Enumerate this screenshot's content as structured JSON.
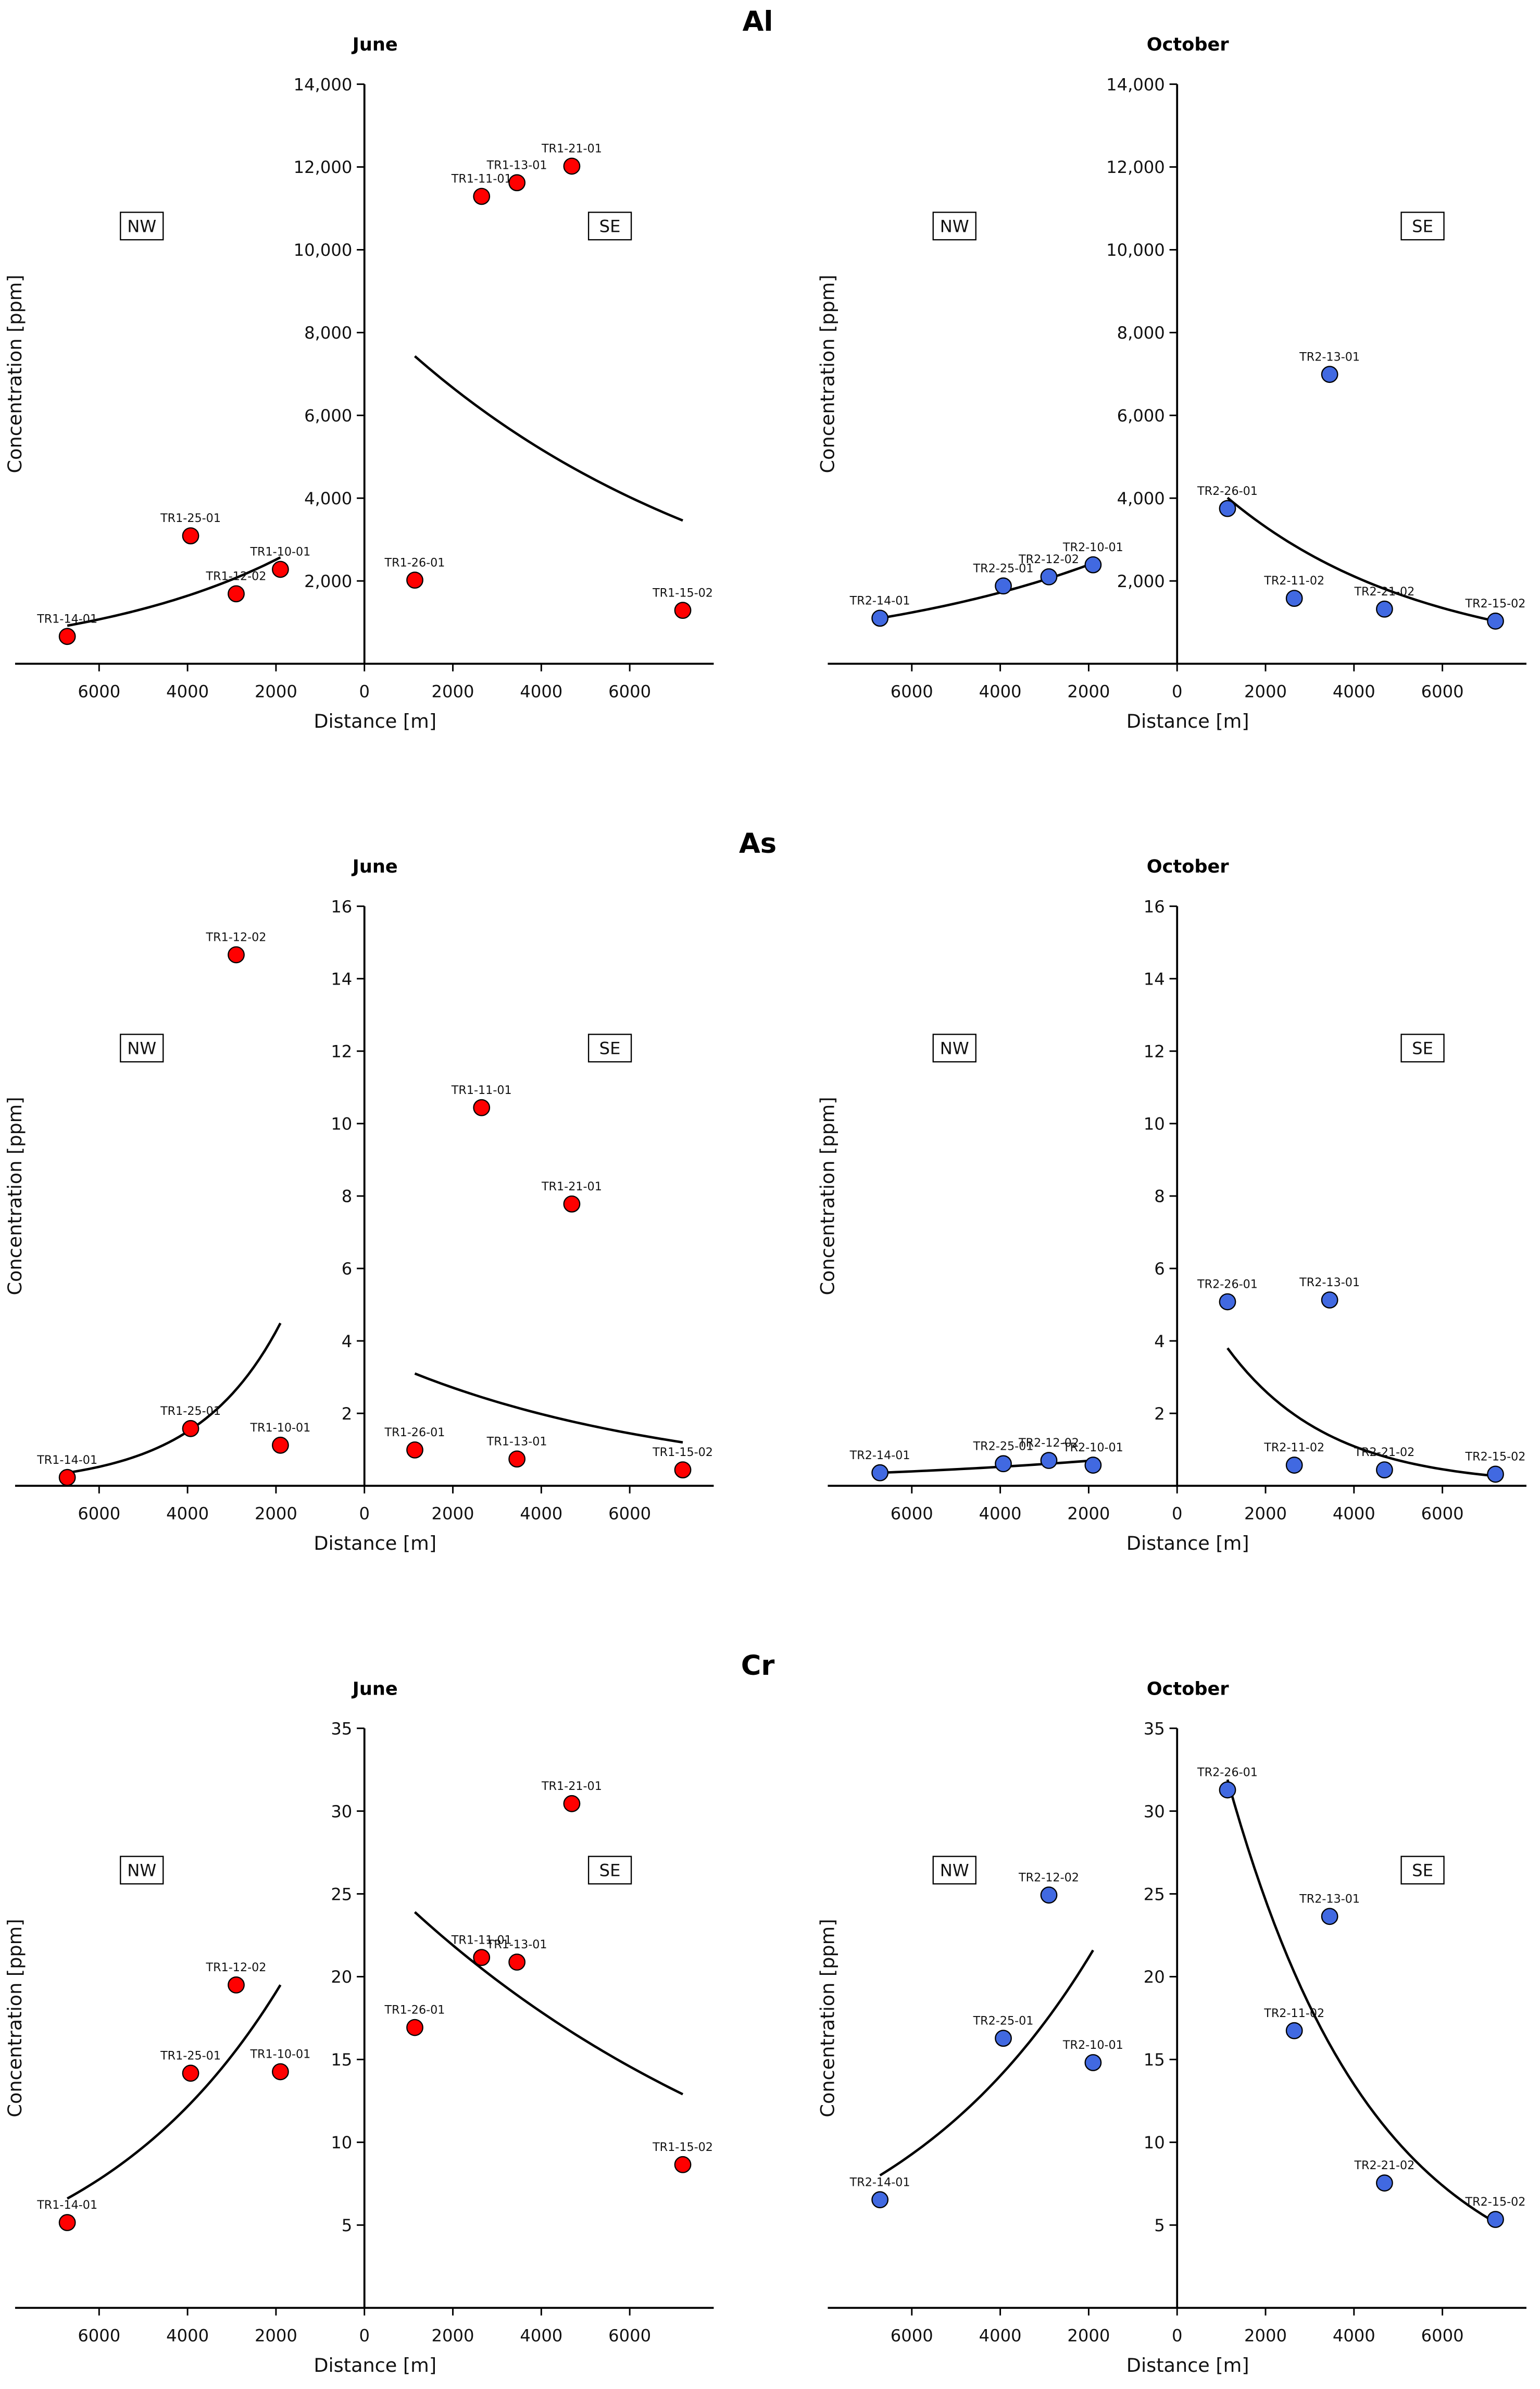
{
  "chart_data": [
    {
      "type": "scatter",
      "element": "Al",
      "title": "June",
      "xlabel": "Distance [m]",
      "ylabel": "Concentration [ppm]",
      "xlim": [
        -7900,
        7900
      ],
      "xticks": [
        -6000,
        -4000,
        -2000,
        0,
        2000,
        4000,
        6000
      ],
      "xticklabels": [
        "6000",
        "4000",
        "2000",
        "0",
        "2000",
        "4000",
        "6000"
      ],
      "ylim": [
        0,
        14000
      ],
      "yticks": [
        2000,
        4000,
        6000,
        8000,
        10000,
        12000,
        14000
      ],
      "yticklabels": [
        "2,000",
        "4,000",
        "6,000",
        "8,000",
        "10,000",
        "12,000",
        "14,000"
      ],
      "annotations": [
        "NW",
        "SE"
      ],
      "color": "#ff0000",
      "points": [
        {
          "label": "TR1-14-01",
          "x": -6720,
          "y": 660
        },
        {
          "label": "TR1-25-01",
          "x": -3930,
          "y": 3090
        },
        {
          "label": "TR1-12-02",
          "x": -2900,
          "y": 1690
        },
        {
          "label": "TR1-10-01",
          "x": -1900,
          "y": 2280
        },
        {
          "label": "TR1-26-01",
          "x": 1140,
          "y": 2020
        },
        {
          "label": "TR1-11-01",
          "x": 2650,
          "y": 11290
        },
        {
          "label": "TR1-13-01",
          "x": 3450,
          "y": 11620
        },
        {
          "label": "TR1-21-01",
          "x": 4690,
          "y": 12020
        },
        {
          "label": "TR1-15-02",
          "x": 7200,
          "y": 1290
        }
      ],
      "trends": [
        {
          "x": [
            -6720,
            -1900
          ],
          "y": [
            920,
            2570
          ]
        },
        {
          "x": [
            1140,
            7200
          ],
          "y": [
            7430,
            3460
          ]
        }
      ]
    },
    {
      "type": "scatter",
      "element": "Al",
      "title": "October",
      "xlabel": "Distance [m]",
      "ylabel": "Concentration [ppm]",
      "xlim": [
        -7900,
        7900
      ],
      "xticks": [
        -6000,
        -4000,
        -2000,
        0,
        2000,
        4000,
        6000
      ],
      "xticklabels": [
        "6000",
        "4000",
        "2000",
        "0",
        "2000",
        "4000",
        "6000"
      ],
      "ylim": [
        0,
        14000
      ],
      "yticks": [
        2000,
        4000,
        6000,
        8000,
        10000,
        12000,
        14000
      ],
      "yticklabels": [
        "2,000",
        "4,000",
        "6,000",
        "8,000",
        "10,000",
        "12,000",
        "14,000"
      ],
      "annotations": [
        "NW",
        "SE"
      ],
      "color": "#4169e1",
      "points": [
        {
          "label": "TR2-14-01",
          "x": -6720,
          "y": 1100
        },
        {
          "label": "TR2-25-01",
          "x": -3930,
          "y": 1880
        },
        {
          "label": "TR2-12-02",
          "x": -2900,
          "y": 2100
        },
        {
          "label": "TR2-10-01",
          "x": -1900,
          "y": 2390
        },
        {
          "label": "TR2-26-01",
          "x": 1140,
          "y": 3750
        },
        {
          "label": "TR2-11-02",
          "x": 2650,
          "y": 1580
        },
        {
          "label": "TR2-13-01",
          "x": 3450,
          "y": 6990
        },
        {
          "label": "TR2-21-02",
          "x": 4690,
          "y": 1320
        },
        {
          "label": "TR2-15-02",
          "x": 7200,
          "y": 1030
        }
      ],
      "trends": [
        {
          "x": [
            -6720,
            -1900
          ],
          "y": [
            1100,
            2430
          ]
        },
        {
          "x": [
            1140,
            7200
          ],
          "y": [
            4010,
            1030
          ]
        }
      ]
    },
    {
      "type": "scatter",
      "element": "As",
      "title": "June",
      "xlabel": "Distance [m]",
      "ylabel": "Concentration [ppm]",
      "xlim": [
        -7900,
        7900
      ],
      "xticks": [
        -6000,
        -4000,
        -2000,
        0,
        2000,
        4000,
        6000
      ],
      "xticklabels": [
        "6000",
        "4000",
        "2000",
        "0",
        "2000",
        "4000",
        "6000"
      ],
      "ylim": [
        0,
        16
      ],
      "yticks": [
        2,
        4,
        6,
        8,
        10,
        12,
        14,
        16
      ],
      "yticklabels": [
        "2",
        "4",
        "6",
        "8",
        "10",
        "12",
        "14",
        "16"
      ],
      "annotations": [
        "NW",
        "SE"
      ],
      "color": "#ff0000",
      "points": [
        {
          "label": "TR1-14-01",
          "x": -6720,
          "y": 0.23
        },
        {
          "label": "TR1-25-01",
          "x": -3930,
          "y": 1.58
        },
        {
          "label": "TR1-12-02",
          "x": -2900,
          "y": 14.66
        },
        {
          "label": "TR1-10-01",
          "x": -1900,
          "y": 1.12
        },
        {
          "label": "TR1-26-01",
          "x": 1140,
          "y": 0.99
        },
        {
          "label": "TR1-11-01",
          "x": 2650,
          "y": 10.44
        },
        {
          "label": "TR1-13-01",
          "x": 3450,
          "y": 0.74
        },
        {
          "label": "TR1-21-01",
          "x": 4690,
          "y": 7.78
        },
        {
          "label": "TR1-15-02",
          "x": 7200,
          "y": 0.44
        }
      ],
      "trends": [
        {
          "x": [
            -6720,
            -1900
          ],
          "y": [
            0.36,
            4.49
          ]
        },
        {
          "x": [
            1140,
            7200
          ],
          "y": [
            3.1,
            1.2
          ]
        }
      ]
    },
    {
      "type": "scatter",
      "element": "As",
      "title": "October",
      "xlabel": "Distance [m]",
      "ylabel": "Concentration [ppm]",
      "xlim": [
        -7900,
        7900
      ],
      "xticks": [
        -6000,
        -4000,
        -2000,
        0,
        2000,
        4000,
        6000
      ],
      "xticklabels": [
        "6000",
        "4000",
        "2000",
        "0",
        "2000",
        "4000",
        "6000"
      ],
      "ylim": [
        0,
        16
      ],
      "yticks": [
        2,
        4,
        6,
        8,
        10,
        12,
        14,
        16
      ],
      "yticklabels": [
        "2",
        "4",
        "6",
        "8",
        "10",
        "12",
        "14",
        "16"
      ],
      "annotations": [
        "NW",
        "SE"
      ],
      "color": "#4169e1",
      "points": [
        {
          "label": "TR2-14-01",
          "x": -6720,
          "y": 0.36
        },
        {
          "label": "TR2-25-01",
          "x": -3930,
          "y": 0.61
        },
        {
          "label": "TR2-12-02",
          "x": -2900,
          "y": 0.7
        },
        {
          "label": "TR2-10-01",
          "x": -1900,
          "y": 0.57
        },
        {
          "label": "TR2-26-01",
          "x": 1140,
          "y": 5.08
        },
        {
          "label": "TR2-11-02",
          "x": 2650,
          "y": 0.57
        },
        {
          "label": "TR2-13-01",
          "x": 3450,
          "y": 5.13
        },
        {
          "label": "TR2-21-02",
          "x": 4690,
          "y": 0.44
        },
        {
          "label": "TR2-15-02",
          "x": 7200,
          "y": 0.32
        }
      ],
      "trends": [
        {
          "x": [
            -6720,
            -1900
          ],
          "y": [
            0.36,
            0.7
          ]
        },
        {
          "x": [
            1140,
            7200
          ],
          "y": [
            3.8,
            0.27
          ]
        }
      ]
    },
    {
      "type": "scatter",
      "element": "Cr",
      "title": "June",
      "xlabel": "Distance [m]",
      "ylabel": "Concentration [ppm]",
      "xlim": [
        -7900,
        7900
      ],
      "xticks": [
        -6000,
        -4000,
        -2000,
        0,
        2000,
        4000,
        6000
      ],
      "xticklabels": [
        "6000",
        "4000",
        "2000",
        "0",
        "2000",
        "4000",
        "6000"
      ],
      "ylim": [
        0,
        35
      ],
      "yticks": [
        5,
        10,
        15,
        20,
        25,
        30,
        35
      ],
      "yticklabels": [
        "5",
        "10",
        "15",
        "20",
        "25",
        "30",
        "35"
      ],
      "annotations": [
        "NW",
        "SE"
      ],
      "color": "#ff0000",
      "points": [
        {
          "label": "TR1-14-01",
          "x": -6720,
          "y": 5.15
        },
        {
          "label": "TR1-25-01",
          "x": -3930,
          "y": 14.17
        },
        {
          "label": "TR1-12-02",
          "x": -2900,
          "y": 19.5
        },
        {
          "label": "TR1-10-01",
          "x": -1900,
          "y": 14.26
        },
        {
          "label": "TR1-26-01",
          "x": 1140,
          "y": 16.93
        },
        {
          "label": "TR1-11-01",
          "x": 2650,
          "y": 21.16
        },
        {
          "label": "TR1-13-01",
          "x": 3450,
          "y": 20.88
        },
        {
          "label": "TR1-21-01",
          "x": 4690,
          "y": 30.45
        },
        {
          "label": "TR1-15-02",
          "x": 7200,
          "y": 8.65
        }
      ],
      "trends": [
        {
          "x": [
            -6720,
            -1900
          ],
          "y": [
            6.6,
            19.5
          ]
        },
        {
          "x": [
            1140,
            7200
          ],
          "y": [
            23.9,
            12.9
          ]
        }
      ]
    },
    {
      "type": "scatter",
      "element": "Cr",
      "title": "October",
      "xlabel": "Distance [m]",
      "ylabel": "Concentration [ppm]",
      "xlim": [
        -7900,
        7900
      ],
      "xticks": [
        -6000,
        -4000,
        -2000,
        0,
        2000,
        4000,
        6000
      ],
      "xticklabels": [
        "6000",
        "4000",
        "2000",
        "0",
        "2000",
        "4000",
        "6000"
      ],
      "ylim": [
        0,
        35
      ],
      "yticks": [
        5,
        10,
        15,
        20,
        25,
        30,
        35
      ],
      "yticklabels": [
        "5",
        "10",
        "15",
        "20",
        "25",
        "30",
        "35"
      ],
      "annotations": [
        "NW",
        "SE"
      ],
      "color": "#4169e1",
      "points": [
        {
          "label": "TR2-14-01",
          "x": -6720,
          "y": 6.53
        },
        {
          "label": "TR2-25-01",
          "x": -3930,
          "y": 16.28
        },
        {
          "label": "TR2-12-02",
          "x": -2900,
          "y": 24.93
        },
        {
          "label": "TR2-10-01",
          "x": -1900,
          "y": 14.81
        },
        {
          "label": "TR2-26-01",
          "x": 1140,
          "y": 31.28
        },
        {
          "label": "TR2-11-02",
          "x": 2650,
          "y": 16.74
        },
        {
          "label": "TR2-13-01",
          "x": 3450,
          "y": 23.64
        },
        {
          "label": "TR2-21-02",
          "x": 4690,
          "y": 7.54
        },
        {
          "label": "TR2-15-02",
          "x": 7200,
          "y": 5.34
        }
      ],
      "trends": [
        {
          "x": [
            -6720,
            -1900
          ],
          "y": [
            8.0,
            21.6
          ]
        },
        {
          "x": [
            1140,
            7200
          ],
          "y": [
            31.9,
            5.15
          ]
        }
      ]
    }
  ]
}
